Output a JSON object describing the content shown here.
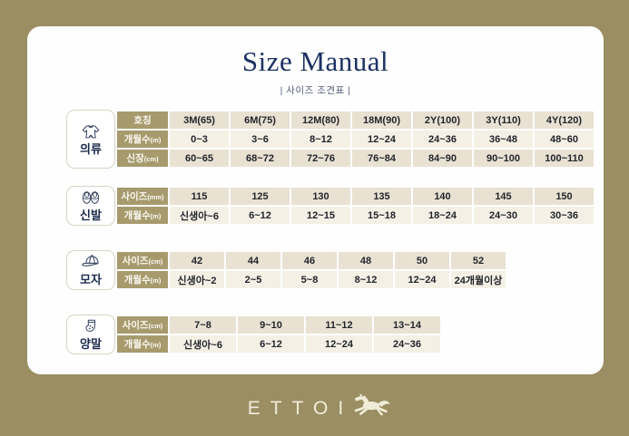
{
  "page": {
    "title": "Size Manual",
    "subtitle": "| 사이즈 조견표 |"
  },
  "brand": {
    "logo_text": "ETTOI",
    "logo_icon": "horse-icon"
  },
  "colors": {
    "background_olive": "#9a8e62",
    "card_white": "#fefefe",
    "header_cell_olive": "#a79b6e",
    "row_dark_beige": "#e9e2d2",
    "row_light_cream": "#f4f0e5",
    "title_navy": "#1d3263",
    "data_text": "#23252c",
    "logo_cream": "#f1ecd9"
  },
  "sections": [
    {
      "category": "의류",
      "icon": "onesie-icon",
      "rows": [
        {
          "label": "호칭",
          "unit": "",
          "values": [
            "3M(65)",
            "6M(75)",
            "12M(80)",
            "18M(90)",
            "2Y(100)",
            "3Y(110)",
            "4Y(120)"
          ]
        },
        {
          "label": "개월수",
          "unit": "(m)",
          "values": [
            "0~3",
            "3~6",
            "8~12",
            "12~24",
            "24~36",
            "36~48",
            "48~60"
          ]
        },
        {
          "label": "신장",
          "unit": "(cm)",
          "values": [
            "60~65",
            "68~72",
            "72~76",
            "76~84",
            "84~90",
            "90~100",
            "100~110"
          ]
        }
      ]
    },
    {
      "category": "신발",
      "icon": "shoes-icon",
      "rows": [
        {
          "label": "사이즈",
          "unit": "(mm)",
          "values": [
            "115",
            "125",
            "130",
            "135",
            "140",
            "145",
            "150"
          ]
        },
        {
          "label": "개월수",
          "unit": "(m)",
          "values": [
            "신생아~6",
            "6~12",
            "12~15",
            "15~18",
            "18~24",
            "24~30",
            "30~36"
          ]
        }
      ]
    },
    {
      "category": "모자",
      "icon": "cap-icon",
      "rows": [
        {
          "label": "사이즈",
          "unit": "(cm)",
          "values": [
            "42",
            "44",
            "46",
            "48",
            "50",
            "52"
          ]
        },
        {
          "label": "개월수",
          "unit": "(m)",
          "values": [
            "신생아~2",
            "2~5",
            "5~8",
            "8~12",
            "12~24",
            "24개월이상"
          ]
        }
      ]
    },
    {
      "category": "양말",
      "icon": "sock-icon",
      "rows": [
        {
          "label": "사이즈",
          "unit": "(cm)",
          "values": [
            "7~8",
            "9~10",
            "11~12",
            "13~14"
          ]
        },
        {
          "label": "개월수",
          "unit": "(m)",
          "values": [
            "신생아~6",
            "6~12",
            "12~24",
            "24~36"
          ]
        }
      ]
    }
  ]
}
